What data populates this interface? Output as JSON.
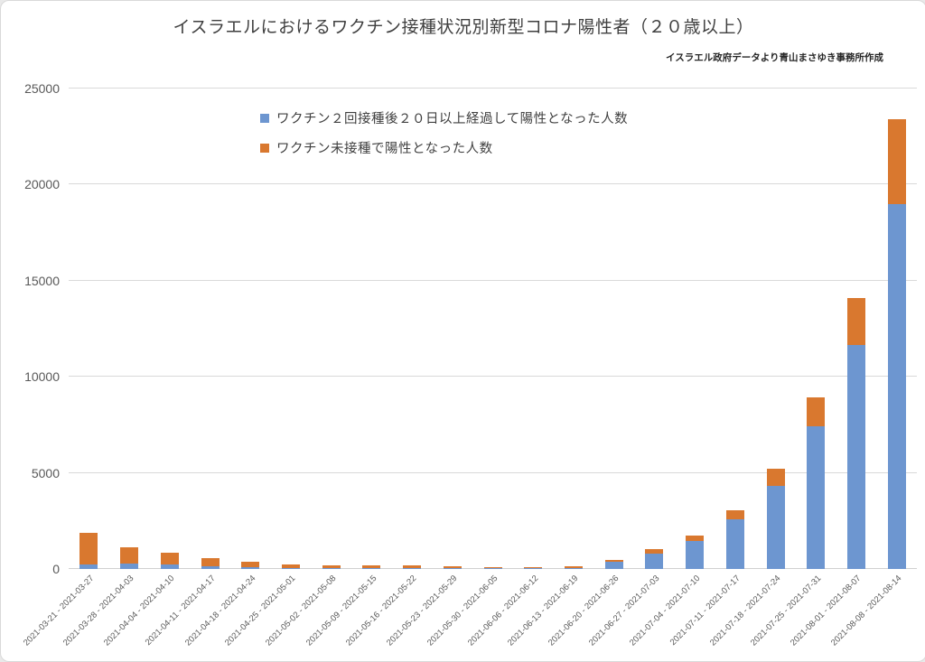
{
  "page": {
    "background": "#ffffff"
  },
  "header": {
    "title": "イスラエルにおけるワクチン接種状況別新型コロナ陽性者（２０歳以上）",
    "attribution": "イスラエル政府データより青山まさゆき事務所作成"
  },
  "legend": {
    "items": [
      {
        "label": "ワクチン２回接種後２０日以上経過して陽性となった人数",
        "color": "#6D96D0"
      },
      {
        "label": "ワクチン未接種で陽性となった人数",
        "color": "#D9782F"
      }
    ]
  },
  "chart_data": {
    "type": "bar",
    "stacked": true,
    "title": "イスラエルにおけるワクチン接種状況別新型コロナ陽性者（２０歳以上）",
    "xlabel": "",
    "ylabel": "",
    "ylim": [
      0,
      25000
    ],
    "yticks": [
      0,
      5000,
      10000,
      15000,
      20000,
      25000
    ],
    "grid": "horizontal",
    "legend_position": "upper-left-inside",
    "categories": [
      "2021-03-21 - 2021-03-27",
      "2021-03-28 - 2021-04-03",
      "2021-04-04 - 2021-04-10",
      "2021-04-11 - 2021-04-17",
      "2021-04-18 - 2021-04-24",
      "2021-04-25 - 2021-05-01",
      "2021-05-02 - 2021-05-08",
      "2021-05-09 - 2021-05-15",
      "2021-05-16 - 2021-05-22",
      "2021-05-23 - 2021-05-29",
      "2021-05-30 - 2021-06-05",
      "2021-06-06 - 2021-06-12",
      "2021-06-13 - 2021-06-19",
      "2021-06-20 - 2021-06-26",
      "2021-06-27 - 2021-07-03",
      "2021-07-04 - 2021-07-10",
      "2021-07-11 - 2021-07-17",
      "2021-07-18 - 2021-07-24",
      "2021-07-25 - 2021-07-31",
      "2021-08-01 - 2021-08-07",
      "2021-08-08 - 2021-08-14"
    ],
    "series": [
      {
        "name": "ワクチン２回接種後２０日以上経過して陽性となった人数",
        "color": "#6D96D0",
        "values": [
          250,
          270,
          220,
          150,
          100,
          50,
          60,
          40,
          60,
          30,
          30,
          25,
          40,
          400,
          800,
          1450,
          2600,
          4330,
          7420,
          11650,
          19000
        ]
      },
      {
        "name": "ワクチン未接種で陽性となった人数",
        "color": "#D9782F",
        "values": [
          1620,
          850,
          630,
          400,
          280,
          180,
          140,
          130,
          120,
          90,
          80,
          60,
          80,
          50,
          240,
          300,
          470,
          870,
          1500,
          2450,
          4400
        ]
      }
    ]
  }
}
